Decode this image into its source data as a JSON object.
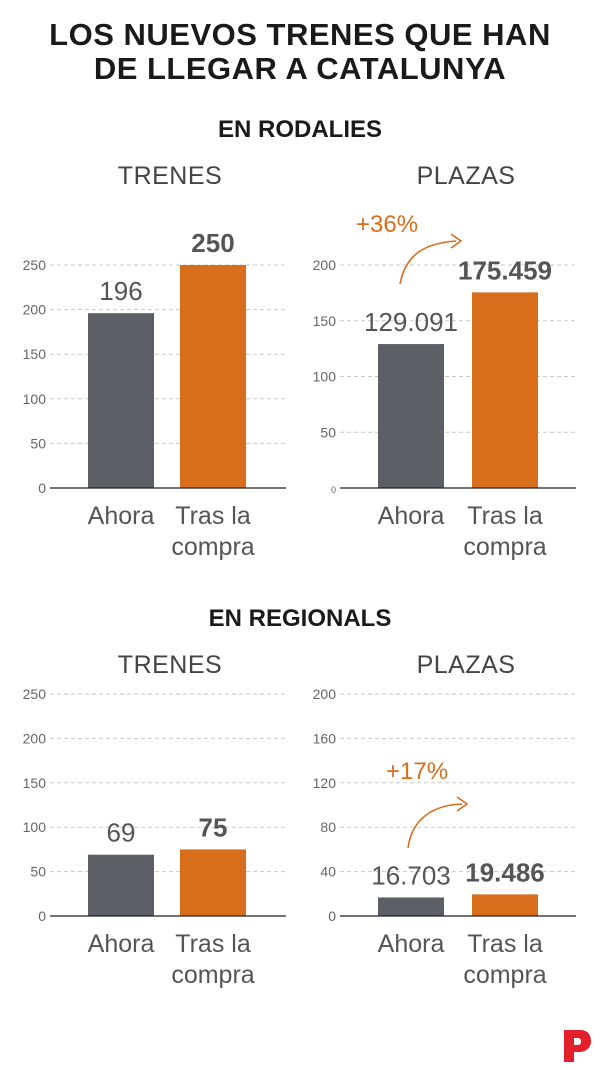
{
  "page_title_line1": "LOS NUEVOS TRENES QUE HAN",
  "page_title_line2": "DE LLEGAR A CATALUNYA",
  "sections": [
    {
      "title": "EN RODALIES"
    },
    {
      "title": "EN REGIONALS"
    }
  ],
  "colors": {
    "current": "#5c5f66",
    "future": "#d86d1c",
    "text": "#555555",
    "brand": "#e3202b"
  },
  "chart_data": [
    {
      "type": "bar",
      "section": "EN RODALIES",
      "title": "TRENES",
      "categories": [
        "Ahora",
        "Tras la compra"
      ],
      "category_lines": [
        [
          "Ahora"
        ],
        [
          "Tras la",
          "compra"
        ]
      ],
      "values": [
        196,
        250
      ],
      "value_labels": [
        "196",
        "250"
      ],
      "ylim": [
        0,
        250
      ],
      "yticks": [
        0,
        50,
        100,
        150,
        200,
        250
      ]
    },
    {
      "type": "bar",
      "section": "EN RODALIES",
      "title": "PLAZAS",
      "categories": [
        "Ahora",
        "Tras la compra"
      ],
      "category_lines": [
        [
          "Ahora"
        ],
        [
          "Tras la",
          "compra"
        ]
      ],
      "values": [
        129091,
        175459
      ],
      "value_labels": [
        "129.091",
        "175.459"
      ],
      "ylim": [
        0,
        200000
      ],
      "yticks": [
        0,
        50000,
        100000,
        150000,
        200000
      ],
      "ytick_labels": [
        "0",
        "50",
        "100",
        "150",
        "200"
      ],
      "annotation": "+36%"
    },
    {
      "type": "bar",
      "section": "EN REGIONALS",
      "title": "TRENES",
      "categories": [
        "Ahora",
        "Tras la compra"
      ],
      "category_lines": [
        [
          "Ahora"
        ],
        [
          "Tras la",
          "compra"
        ]
      ],
      "values": [
        69,
        75
      ],
      "value_labels": [
        "69",
        "75"
      ],
      "ylim": [
        0,
        250
      ],
      "yticks": [
        0,
        50,
        100,
        150,
        200,
        250
      ]
    },
    {
      "type": "bar",
      "section": "EN REGIONALS",
      "title": "PLAZAS",
      "categories": [
        "Ahora",
        "Tras la compra"
      ],
      "category_lines": [
        [
          "Ahora"
        ],
        [
          "Tras la",
          "compra"
        ]
      ],
      "values": [
        16703,
        19486
      ],
      "value_labels": [
        "16.703",
        "19.486"
      ],
      "ylim": [
        0,
        200000
      ],
      "yticks": [
        0,
        40000,
        80000,
        120000,
        160000,
        200000
      ],
      "ytick_labels": [
        "0",
        "40",
        "80",
        "120",
        "160",
        "200"
      ],
      "annotation": "+17%"
    }
  ]
}
